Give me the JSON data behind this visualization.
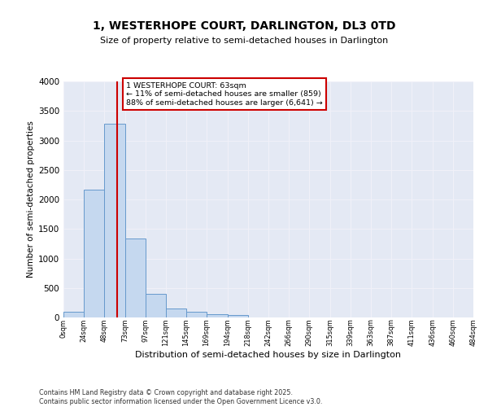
{
  "title": "1, WESTERHOPE COURT, DARLINGTON, DL3 0TD",
  "subtitle": "Size of property relative to semi-detached houses in Darlington",
  "xlabel": "Distribution of semi-detached houses by size in Darlington",
  "ylabel": "Number of semi-detached properties",
  "footnote1": "Contains HM Land Registry data © Crown copyright and database right 2025.",
  "footnote2": "Contains public sector information licensed under the Open Government Licence v3.0.",
  "annotation_title": "1 WESTERHOPE COURT: 63sqm",
  "annotation_line1": "← 11% of semi-detached houses are smaller (859)",
  "annotation_line2": "88% of semi-detached houses are larger (6,641) →",
  "property_size": 63,
  "bar_edges": [
    0,
    24,
    48,
    73,
    97,
    121,
    145,
    169,
    194,
    218,
    242,
    266,
    290,
    315,
    339,
    363,
    387,
    411,
    436,
    460,
    484
  ],
  "bar_heights": [
    100,
    2170,
    3280,
    1340,
    400,
    150,
    90,
    50,
    40,
    0,
    0,
    0,
    0,
    0,
    0,
    0,
    0,
    0,
    0,
    0
  ],
  "bar_color": "#c5d8ef",
  "bar_edge_color": "#6699cc",
  "vline_color": "#cc0000",
  "plot_bg_color": "#e4e9f4",
  "grid_color": "#f0f0f8",
  "ylim": [
    0,
    4000
  ],
  "yticks": [
    0,
    500,
    1000,
    1500,
    2000,
    2500,
    3000,
    3500,
    4000
  ],
  "tick_labels": [
    "0sqm",
    "24sqm",
    "48sqm",
    "73sqm",
    "97sqm",
    "121sqm",
    "145sqm",
    "169sqm",
    "194sqm",
    "218sqm",
    "242sqm",
    "266sqm",
    "290sqm",
    "315sqm",
    "339sqm",
    "363sqm",
    "387sqm",
    "411sqm",
    "436sqm",
    "460sqm",
    "484sqm"
  ]
}
